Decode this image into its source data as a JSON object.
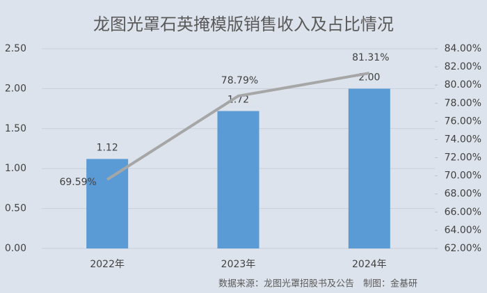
{
  "chart_data": {
    "type": "bar",
    "title": "龙图光罩石英掩模版销售收入及占比情况",
    "source": "数据来源：龙图光罩招股书及公告　制图：金基研",
    "categories": [
      "2022年",
      "2023年",
      "2024年"
    ],
    "series": [
      {
        "type": "bar",
        "color": "#5b9bd5",
        "values": [
          1.12,
          1.72,
          2
        ],
        "value_labels": [
          "1.12",
          "1.72",
          "2.00"
        ]
      },
      {
        "type": "line",
        "axis": "y2",
        "color": "#a6a6a6",
        "values": [
          69.59,
          78.79,
          81.31
        ],
        "value_labels": [
          "69.59%",
          "78.79%",
          "81.31%"
        ]
      }
    ],
    "ylim": [
      0,
      2.5
    ],
    "yticks": [
      {
        "value": 0,
        "label": "0.00"
      },
      {
        "value": 0.5,
        "label": "0.50"
      },
      {
        "value": 1,
        "label": "1.00"
      },
      {
        "value": 1.5,
        "label": "1.50"
      },
      {
        "value": 2,
        "label": "2.00"
      },
      {
        "value": 2.5,
        "label": "2.50"
      }
    ],
    "y2lim": [
      62,
      84
    ],
    "y2ticks": [
      {
        "value": 62,
        "label": "62.00%"
      },
      {
        "value": 64,
        "label": "64.00%"
      },
      {
        "value": 66,
        "label": "66.00%"
      },
      {
        "value": 68,
        "label": "68.00%"
      },
      {
        "value": 70,
        "label": "70.00%"
      },
      {
        "value": 72,
        "label": "72.00%"
      },
      {
        "value": 74,
        "label": "74.00%"
      },
      {
        "value": 76,
        "label": "76.00%"
      },
      {
        "value": 78,
        "label": "78.00%"
      },
      {
        "value": 80,
        "label": "80.00%"
      },
      {
        "value": 82,
        "label": "82.00%"
      },
      {
        "value": 84,
        "label": "84.00%"
      }
    ],
    "grid": true
  }
}
